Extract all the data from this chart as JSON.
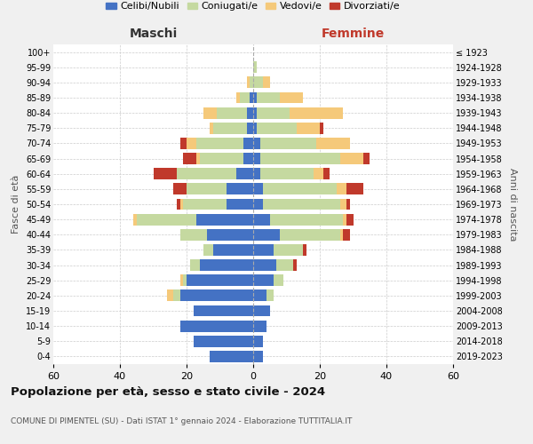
{
  "age_groups_bottom_to_top": [
    "0-4",
    "5-9",
    "10-14",
    "15-19",
    "20-24",
    "25-29",
    "30-34",
    "35-39",
    "40-44",
    "45-49",
    "50-54",
    "55-59",
    "60-64",
    "65-69",
    "70-74",
    "75-79",
    "80-84",
    "85-89",
    "90-94",
    "95-99",
    "100+"
  ],
  "birth_years_bottom_to_top": [
    "2019-2023",
    "2014-2018",
    "2009-2013",
    "2004-2008",
    "1999-2003",
    "1994-1998",
    "1989-1993",
    "1984-1988",
    "1979-1983",
    "1974-1978",
    "1969-1973",
    "1964-1968",
    "1959-1963",
    "1954-1958",
    "1949-1953",
    "1944-1948",
    "1939-1943",
    "1934-1938",
    "1929-1933",
    "1924-1928",
    "≤ 1923"
  ],
  "maschi": {
    "celibi": [
      13,
      18,
      22,
      18,
      22,
      20,
      16,
      12,
      14,
      17,
      8,
      8,
      5,
      3,
      3,
      2,
      2,
      1,
      0,
      0,
      0
    ],
    "coniugati": [
      0,
      0,
      0,
      0,
      2,
      1,
      3,
      3,
      8,
      18,
      13,
      12,
      18,
      13,
      14,
      10,
      9,
      3,
      1,
      0,
      0
    ],
    "vedovi": [
      0,
      0,
      0,
      0,
      2,
      1,
      0,
      0,
      0,
      1,
      1,
      0,
      0,
      1,
      3,
      1,
      4,
      1,
      1,
      0,
      0
    ],
    "divorziati": [
      0,
      0,
      0,
      0,
      0,
      0,
      0,
      0,
      0,
      0,
      1,
      4,
      7,
      4,
      2,
      0,
      0,
      0,
      0,
      0,
      0
    ]
  },
  "femmine": {
    "nubili": [
      3,
      3,
      4,
      5,
      4,
      6,
      7,
      6,
      8,
      5,
      3,
      3,
      2,
      2,
      2,
      1,
      1,
      1,
      0,
      0,
      0
    ],
    "coniugate": [
      0,
      0,
      0,
      0,
      2,
      3,
      5,
      9,
      18,
      22,
      23,
      22,
      16,
      24,
      17,
      12,
      10,
      7,
      3,
      1,
      0
    ],
    "vedove": [
      0,
      0,
      0,
      0,
      0,
      0,
      0,
      0,
      1,
      1,
      2,
      3,
      3,
      7,
      10,
      7,
      16,
      7,
      2,
      0,
      0
    ],
    "divorziate": [
      0,
      0,
      0,
      0,
      0,
      0,
      1,
      1,
      2,
      2,
      1,
      5,
      2,
      2,
      0,
      1,
      0,
      0,
      0,
      0,
      0
    ]
  },
  "colors": {
    "celibi_nubili": "#4472c4",
    "coniugati_e": "#c5d9a0",
    "vedovi_e": "#f5c97a",
    "divorziati_e": "#c0392b"
  },
  "title": "Popolazione per età, sesso e stato civile - 2024",
  "subtitle": "COMUNE DI PIMENTEL (SU) - Dati ISTAT 1° gennaio 2024 - Elaborazione TUTTITALIA.IT",
  "xlabel_left": "Maschi",
  "xlabel_right": "Femmine",
  "ylabel_left": "Fasce di età",
  "ylabel_right": "Anni di nascita",
  "xlim": 60,
  "legend_labels": [
    "Celibi/Nubili",
    "Coniugati/e",
    "Vedovi/e",
    "Divorziati/e"
  ],
  "bg_color": "#f0f0f0",
  "plot_bg": "#ffffff"
}
